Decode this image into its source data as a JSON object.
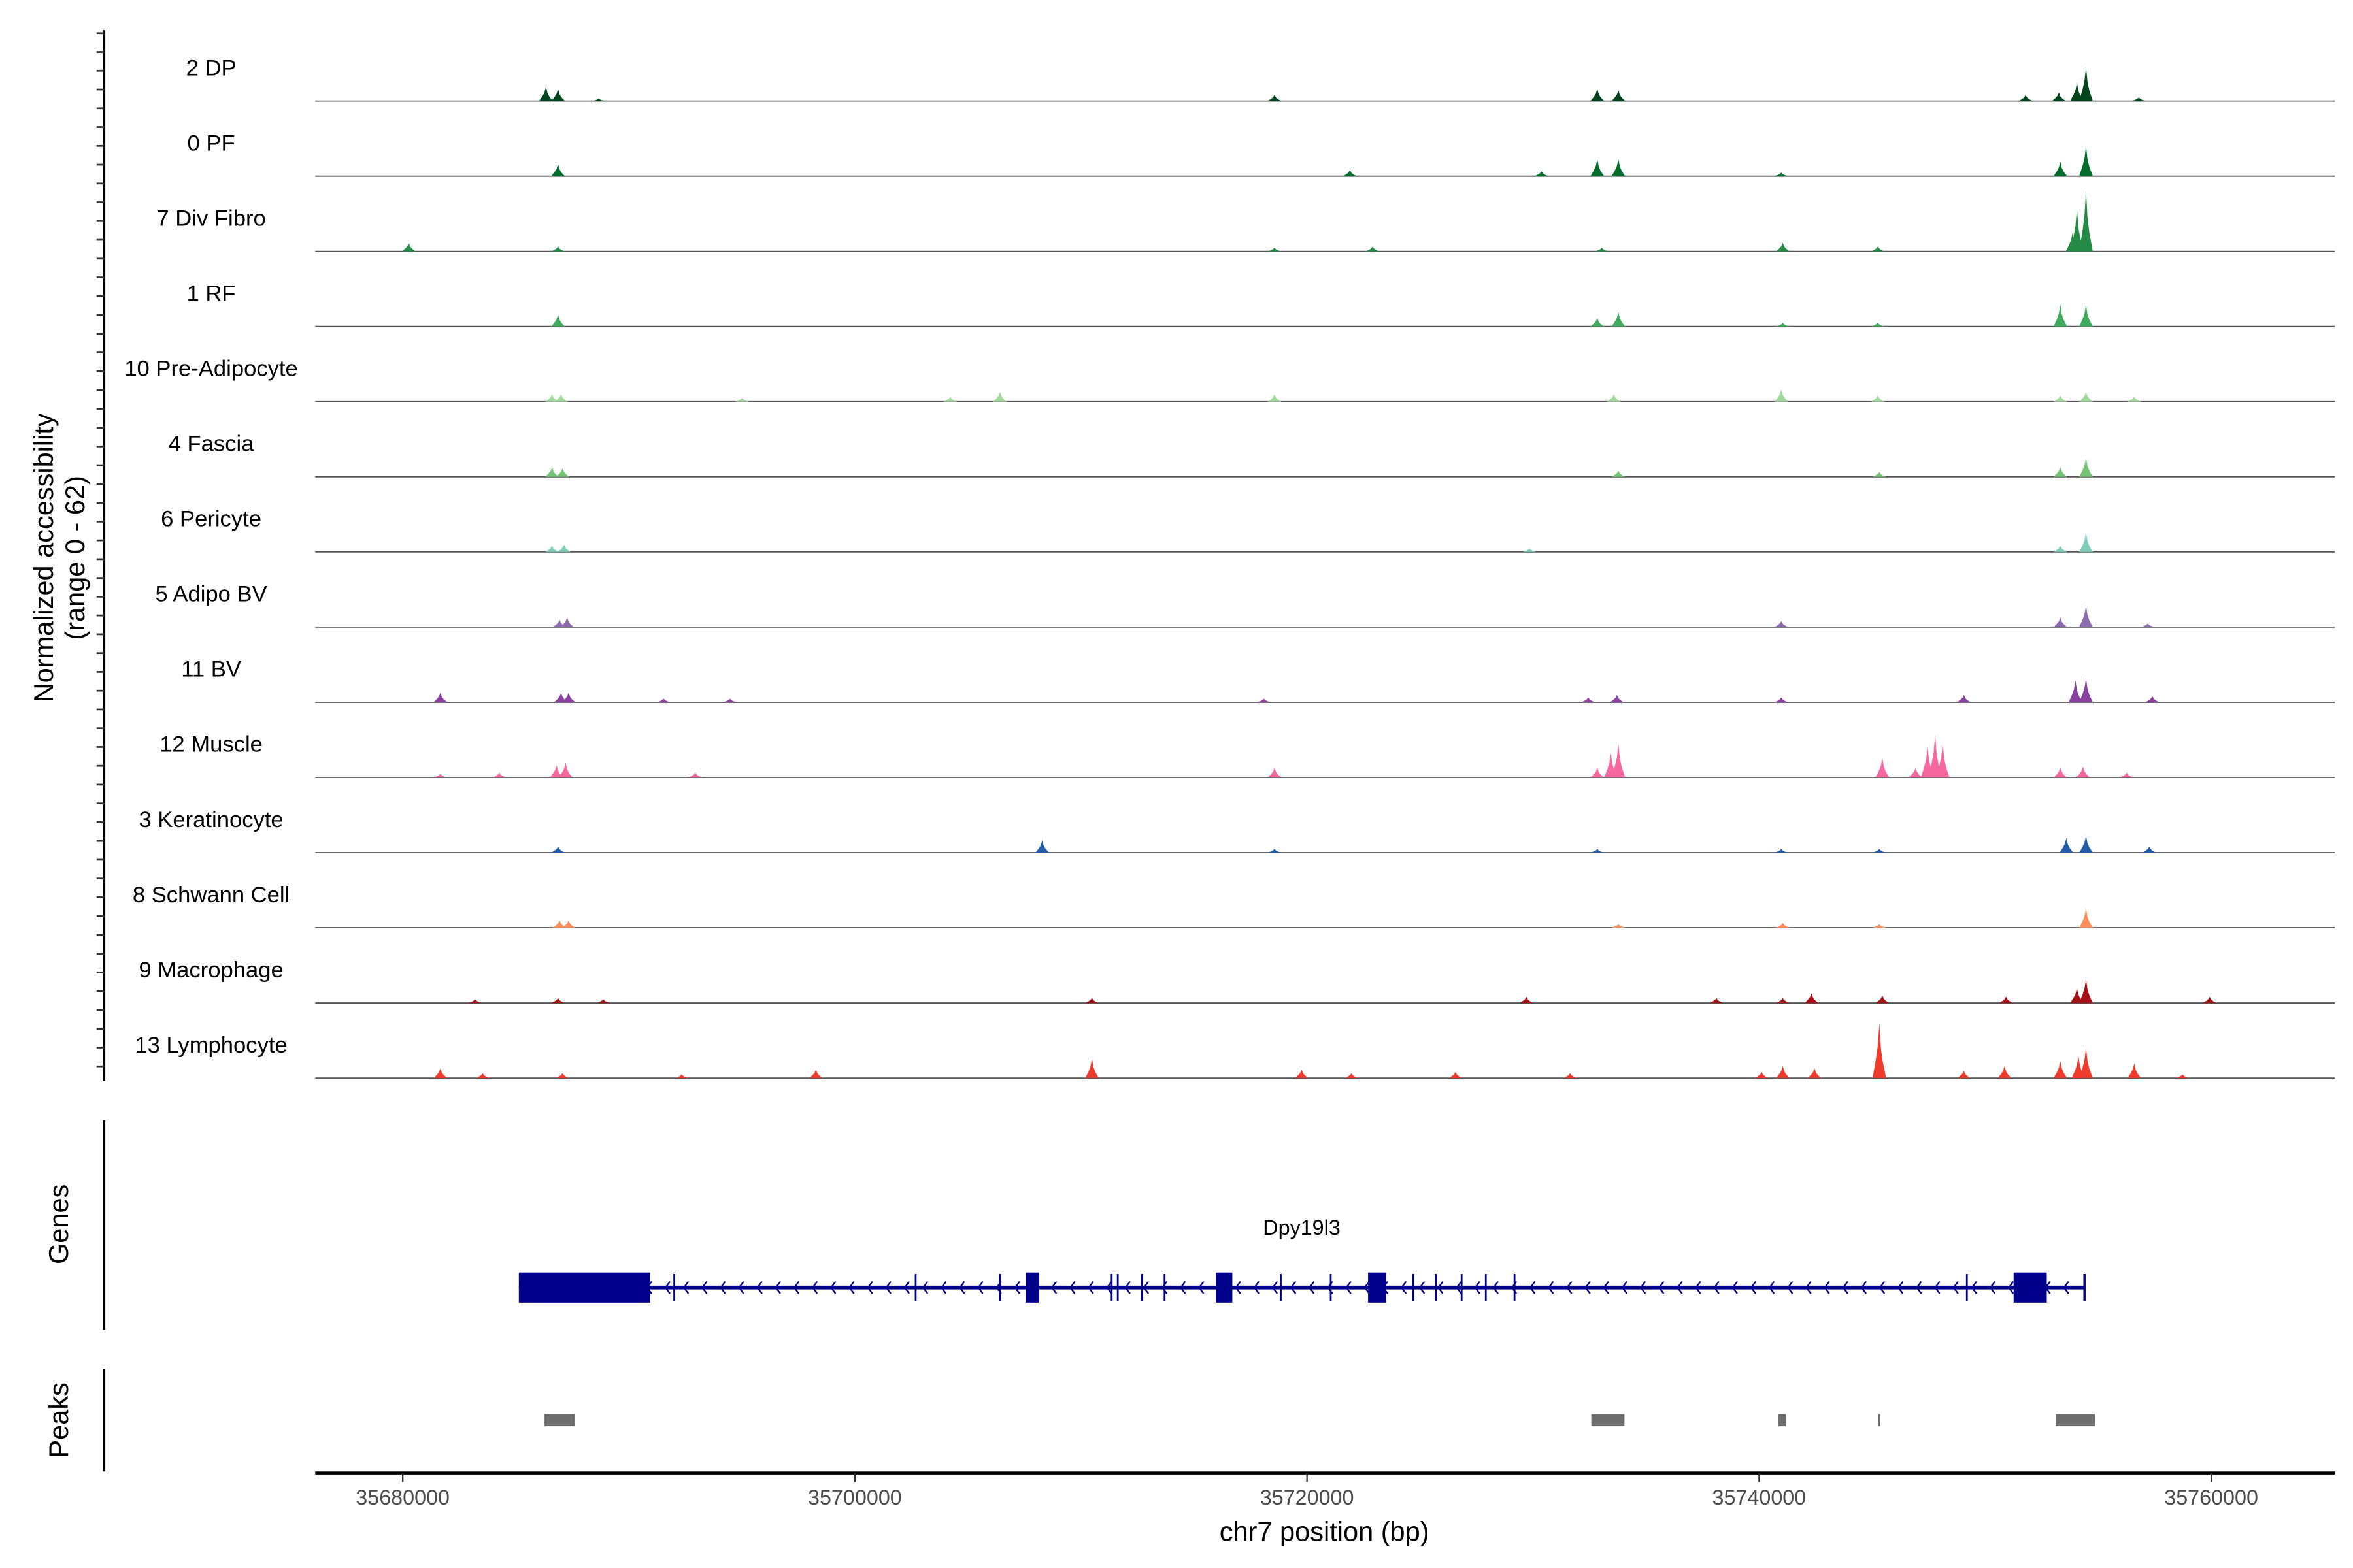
{
  "chart_data": {
    "type": "area",
    "title": "",
    "xlabel": "chr7 position (bp)",
    "ylabel": "Normalized accessibility",
    "ylabel_sub": "(range 0 - 62)",
    "ylim": [
      0,
      62
    ],
    "xlim": [
      35676130,
      35765470
    ],
    "xticks": [
      35680000,
      35700000,
      35720000,
      35740000,
      35760000
    ],
    "xtick_labels": [
      "35680000",
      "35700000",
      "35720000",
      "35740000",
      "35760000"
    ],
    "tracks": [
      {
        "name": "2 DP",
        "color": "#00441b",
        "peaks": [
          [
            35686338,
            12
          ],
          [
            35686872,
            10
          ],
          [
            35688674,
            2
          ],
          [
            35718564,
            5
          ],
          [
            35732842,
            10
          ],
          [
            35733776,
            9
          ],
          [
            35751792,
            5
          ],
          [
            35753260,
            7
          ],
          [
            35754060,
            15
          ],
          [
            35754461,
            28
          ],
          [
            35756796,
            3
          ]
        ]
      },
      {
        "name": "0 PF",
        "color": "#006d2c",
        "peaks": [
          [
            35686872,
            10
          ],
          [
            35721900,
            5
          ],
          [
            35730374,
            4
          ],
          [
            35732842,
            14
          ],
          [
            35733776,
            14
          ],
          [
            35740982,
            3
          ],
          [
            35753326,
            12
          ],
          [
            35754461,
            25
          ]
        ]
      },
      {
        "name": "7 Div Fibro",
        "color": "#238b45",
        "peaks": [
          [
            35680267,
            7
          ],
          [
            35686872,
            4
          ],
          [
            35718564,
            3
          ],
          [
            35722901,
            4
          ],
          [
            35733042,
            3
          ],
          [
            35741049,
            7
          ],
          [
            35745252,
            4
          ],
          [
            35753860,
            15
          ],
          [
            35754060,
            35
          ],
          [
            35754461,
            50
          ]
        ]
      },
      {
        "name": "1 RF",
        "color": "#41ab5d",
        "peaks": [
          [
            35686872,
            10
          ],
          [
            35732842,
            7
          ],
          [
            35733776,
            12
          ],
          [
            35741049,
            3
          ],
          [
            35745252,
            3
          ],
          [
            35753326,
            18
          ],
          [
            35754461,
            18
          ]
        ]
      },
      {
        "name": "10 Pre-Adipocyte",
        "color": "#a1d99b",
        "peaks": [
          [
            35686605,
            6
          ],
          [
            35687006,
            6
          ],
          [
            35695012,
            3
          ],
          [
            35704219,
            4
          ],
          [
            35706421,
            8
          ],
          [
            35718564,
            6
          ],
          [
            35733576,
            6
          ],
          [
            35740982,
            10
          ],
          [
            35745252,
            5
          ],
          [
            35753326,
            5
          ],
          [
            35754461,
            8
          ],
          [
            35756596,
            4
          ]
        ]
      },
      {
        "name": "4 Fascia",
        "color": "#74c476",
        "peaks": [
          [
            35686605,
            8
          ],
          [
            35687072,
            7
          ],
          [
            35733776,
            5
          ],
          [
            35745319,
            4
          ],
          [
            35753326,
            8
          ],
          [
            35754461,
            16
          ]
        ]
      },
      {
        "name": "6 Pericyte",
        "color": "#7fcdbb",
        "peaks": [
          [
            35686605,
            5
          ],
          [
            35687139,
            6
          ],
          [
            35729840,
            3
          ],
          [
            35753326,
            5
          ],
          [
            35754461,
            16
          ]
        ]
      },
      {
        "name": "5 Adipo BV",
        "color": "#8c6bb1",
        "peaks": [
          [
            35686939,
            6
          ],
          [
            35687273,
            8
          ],
          [
            35740982,
            5
          ],
          [
            35753326,
            8
          ],
          [
            35754461,
            18
          ],
          [
            35757196,
            3
          ]
        ]
      },
      {
        "name": "11 BV",
        "color": "#88419d",
        "peaks": [
          [
            35681668,
            8
          ],
          [
            35687006,
            8
          ],
          [
            35687339,
            8
          ],
          [
            35691543,
            3
          ],
          [
            35694478,
            3
          ],
          [
            35718097,
            3
          ],
          [
            35732442,
            4
          ],
          [
            35733710,
            6
          ],
          [
            35740982,
            4
          ],
          [
            35749056,
            6
          ],
          [
            35753994,
            18
          ],
          [
            35754461,
            20
          ],
          [
            35757396,
            5
          ]
        ]
      },
      {
        "name": "12 Muscle",
        "color": "#f768a1",
        "peaks": [
          [
            35681668,
            3
          ],
          [
            35684270,
            4
          ],
          [
            35686805,
            10
          ],
          [
            35687206,
            12
          ],
          [
            35692944,
            4
          ],
          [
            35718564,
            8
          ],
          [
            35732842,
            8
          ],
          [
            35733443,
            20
          ],
          [
            35733776,
            28
          ],
          [
            35745453,
            16
          ],
          [
            35746921,
            8
          ],
          [
            35747455,
            25
          ],
          [
            35747788,
            35
          ],
          [
            35748122,
            28
          ],
          [
            35753326,
            8
          ],
          [
            35754327,
            9
          ],
          [
            35756263,
            4
          ]
        ]
      },
      {
        "name": "3 Keratinocyte",
        "color": "#225ea8",
        "peaks": [
          [
            35686872,
            5
          ],
          [
            35708289,
            10
          ],
          [
            35718564,
            3
          ],
          [
            35732842,
            3
          ],
          [
            35740982,
            3
          ],
          [
            35745319,
            3
          ],
          [
            35753593,
            12
          ],
          [
            35754461,
            14
          ],
          [
            35757263,
            5
          ]
        ]
      },
      {
        "name": "8 Schwann Cell",
        "color": "#fc8d59",
        "peaks": [
          [
            35686939,
            6
          ],
          [
            35687339,
            6
          ],
          [
            35733776,
            3
          ],
          [
            35741049,
            4
          ],
          [
            35745319,
            3
          ],
          [
            35754461,
            16
          ]
        ]
      },
      {
        "name": "9 Macrophage",
        "color": "#a50f15",
        "peaks": [
          [
            35683203,
            3
          ],
          [
            35686872,
            4
          ],
          [
            35688874,
            3
          ],
          [
            35710491,
            4
          ],
          [
            35729707,
            5
          ],
          [
            35738113,
            4
          ],
          [
            35741049,
            4
          ],
          [
            35742317,
            8
          ],
          [
            35745453,
            6
          ],
          [
            35750925,
            5
          ],
          [
            35754060,
            12
          ],
          [
            35754461,
            20
          ],
          [
            35759932,
            5
          ]
        ]
      },
      {
        "name": "13 Lymphocyte",
        "color": "#ef3b2c",
        "peaks": [
          [
            35681668,
            8
          ],
          [
            35683536,
            4
          ],
          [
            35687072,
            4
          ],
          [
            35692343,
            3
          ],
          [
            35698281,
            7
          ],
          [
            35710491,
            16
          ],
          [
            35719765,
            7
          ],
          [
            35721967,
            4
          ],
          [
            35726571,
            5
          ],
          [
            35731641,
            4
          ],
          [
            35740115,
            5
          ],
          [
            35741049,
            10
          ],
          [
            35742450,
            8
          ],
          [
            35745319,
            45
          ],
          [
            35749056,
            6
          ],
          [
            35750858,
            10
          ],
          [
            35753326,
            14
          ],
          [
            35754127,
            18
          ],
          [
            35754461,
            25
          ],
          [
            35756596,
            12
          ],
          [
            35758731,
            3
          ]
        ]
      }
    ],
    "genes": {
      "label": "Genes",
      "name": "Dpy19l3",
      "color": "#00008b",
      "strand": "-",
      "span": [
        35685137,
        35754393
      ],
      "exons": [
        [
          35685137,
          35690942
        ],
        [
          35707556,
          35708157
        ],
        [
          35715963,
          35716697
        ],
        [
          35722702,
          35723503
        ],
        [
          35751257,
          35752725
        ]
      ],
      "small_exons": [
        35692010,
        35702690,
        35706420,
        35707760,
        35711360,
        35711630,
        35712700,
        35713700,
        35718840,
        35721050,
        35724700,
        35725700,
        35726840,
        35727910,
        35729180,
        35749190
      ]
    },
    "peaks_track": {
      "label": "Peaks",
      "color": "#6e6e6e",
      "regions": [
        [
          35686272,
          35687606
        ],
        [
          35732576,
          35734044
        ],
        [
          35740849,
          35741183
        ],
        [
          35745280,
          35745330
        ],
        [
          35753126,
          35754860
        ]
      ]
    }
  }
}
